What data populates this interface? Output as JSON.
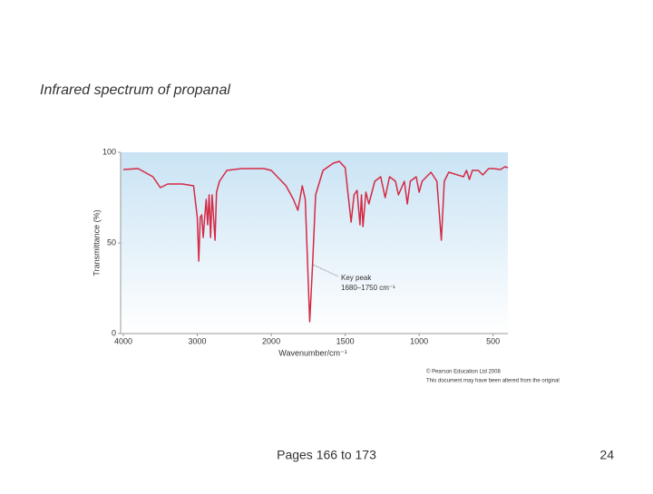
{
  "slide": {
    "title": "Infrared spectrum of propanal",
    "copyright": [
      "© Pearson Education Ltd 2008",
      "This document may have been altered from the original"
    ],
    "footer": "Pages 166 to 173",
    "page_number": "24"
  },
  "chart_data": {
    "type": "line",
    "xlabel": "Wavenumber/cm⁻¹",
    "ylabel": "Transmittance (%)",
    "xlim": [
      4000,
      400
    ],
    "xticks": [
      4000,
      3000,
      2000,
      1500,
      1000,
      500
    ],
    "x_scale_break": 2000,
    "x_scale_ratio": 2,
    "x_reversed": true,
    "ylim": [
      0,
      100
    ],
    "yticks": [
      0,
      50,
      100
    ],
    "grid": false,
    "annotation": [
      "Key peak",
      "1680–1750 cm⁻¹"
    ],
    "series": [
      {
        "name": "propanal",
        "color": "#d42a45",
        "x": [
          4000,
          3800,
          3600,
          3500,
          3400,
          3200,
          3050,
          3000,
          2980,
          2960,
          2940,
          2920,
          2900,
          2880,
          2860,
          2840,
          2820,
          2800,
          2760,
          2740,
          2700,
          2600,
          2400,
          2100,
          2000,
          1900,
          1850,
          1820,
          1790,
          1770,
          1740,
          1720,
          1700,
          1650,
          1580,
          1540,
          1500,
          1480,
          1460,
          1440,
          1420,
          1400,
          1390,
          1380,
          1360,
          1340,
          1300,
          1260,
          1230,
          1200,
          1160,
          1140,
          1100,
          1080,
          1060,
          1020,
          1000,
          980,
          920,
          880,
          850,
          830,
          800,
          700,
          680,
          660,
          640,
          600,
          570,
          530,
          500,
          450,
          420,
          400
        ],
        "values": [
          90.5,
          91,
          86.5,
          80.5,
          82.5,
          82.5,
          81.5,
          64,
          40,
          64,
          65.5,
          53,
          64,
          74,
          60,
          76.5,
          53,
          76.5,
          51.5,
          78,
          84,
          90,
          91,
          91,
          90,
          81.5,
          74,
          68,
          81.5,
          74,
          6.5,
          39,
          76.5,
          90,
          94,
          95,
          91.5,
          76.5,
          61.5,
          76.5,
          79,
          60,
          76.5,
          59,
          78,
          71.5,
          84,
          86.5,
          75,
          86.5,
          84,
          76.5,
          84,
          71.5,
          84,
          86.5,
          78,
          84,
          89,
          84,
          51.5,
          84,
          89,
          86.5,
          90,
          85,
          90,
          90,
          87.5,
          91,
          91,
          90.5,
          92,
          91.5
        ]
      }
    ]
  }
}
